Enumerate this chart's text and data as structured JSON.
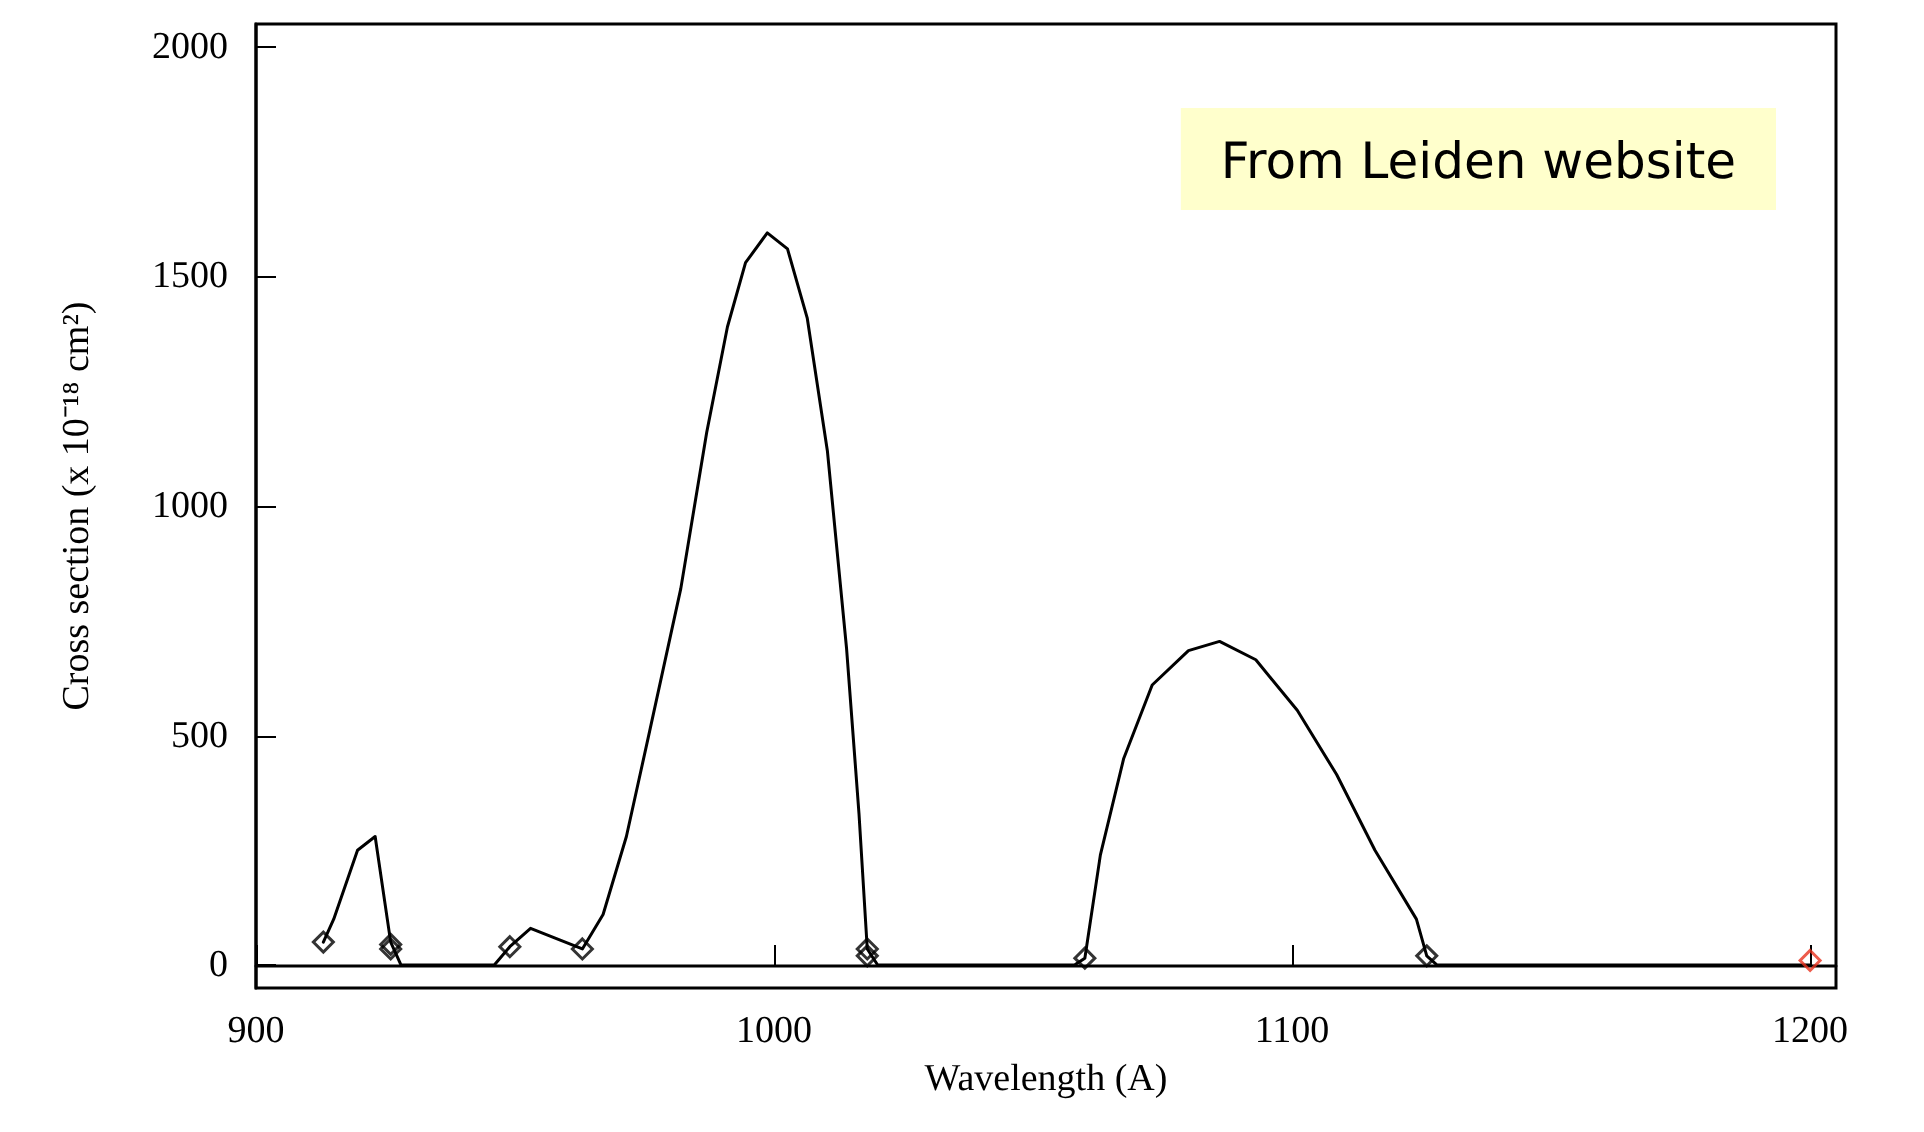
{
  "chart_data": {
    "type": "line",
    "xlabel": "Wavelength (A)",
    "ylabel": "Cross section (x 10⁻¹⁸ cm²)",
    "annotations": [
      "From Leiden website"
    ],
    "xlim": [
      900,
      1205
    ],
    "xticks": [
      900,
      1000,
      1100,
      1200
    ],
    "ylim": [
      -50,
      2050
    ],
    "yticks": [
      0,
      500,
      1000,
      1500,
      2000
    ],
    "series": [
      {
        "color": "#000000",
        "marker": "none",
        "x": [
          913,
          915,
          919.6,
          923,
          926,
          928,
          946,
          949,
          953,
          963,
          967,
          971.5,
          976,
          982,
          987,
          991,
          994.5,
          998.7,
          1002.6,
          1006.4,
          1010.3,
          1014,
          1016.4,
          1018,
          1020,
          1058,
          1060,
          1063,
          1067.5,
          1073,
          1080,
          1086,
          1093,
          1101,
          1108.6,
          1116,
          1124,
          1126,
          1128,
          1200
        ],
        "values": [
          50,
          100,
          250,
          280,
          50,
          0,
          0,
          40,
          80,
          35,
          110,
          280,
          510,
          820,
          1160,
          1390,
          1530,
          1595,
          1560,
          1410,
          1120,
          690,
          330,
          35,
          0,
          0,
          15,
          240,
          450,
          610,
          685,
          705,
          665,
          555,
          415,
          250,
          100,
          20,
          0,
          0
        ]
      },
      {
        "type": "scatter",
        "marker": "diamond",
        "x": [
          913,
          926,
          926,
          949,
          963,
          1018,
          1018,
          1060,
          1126,
          1200
        ],
        "values": [
          50,
          45,
          35,
          40,
          35,
          35,
          20,
          15,
          20,
          10
        ],
        "colors": [
          "#000000",
          "#000000",
          "#000000",
          "#000000",
          "#000000",
          "#000000",
          "#000000",
          "#000000",
          "#000000",
          "#e8321e"
        ]
      }
    ]
  }
}
